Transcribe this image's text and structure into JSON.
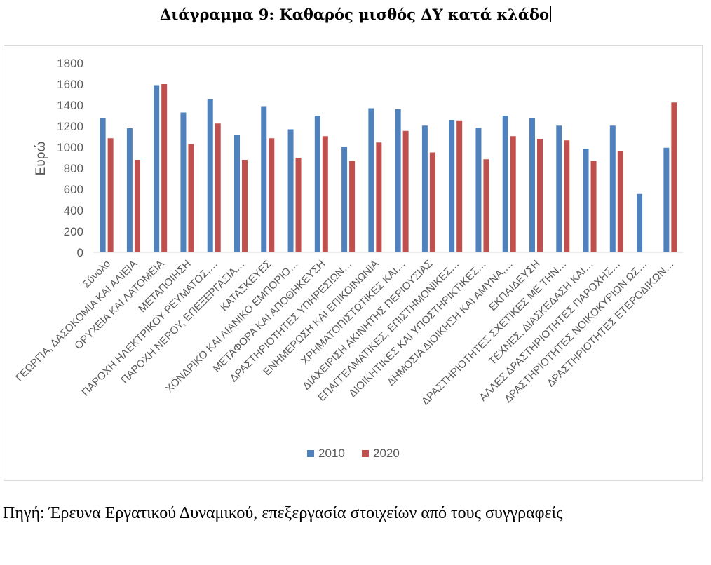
{
  "title": "Διάγραμμα 9: Καθαρός μισθός ΔΥ κατά κλάδο",
  "source": "Πηγή: Έρευνα Εργατικού Δυναμικού, επεξεργασία στοιχείων από τους συγγραφείς",
  "chart_data": {
    "type": "bar",
    "title": "",
    "xlabel": "",
    "ylabel": "Ευρώ",
    "ylim": [
      0,
      1800
    ],
    "yticks": [
      0,
      200,
      400,
      600,
      800,
      1000,
      1200,
      1400,
      1600,
      1800
    ],
    "grid": false,
    "legend_position": "bottom",
    "categories": [
      "Σύνολο",
      "ΓΕΩΡΓΙΑ, ΔΑΣΟΚΟΜΙΑ ΚΑΙ ΑΛΙΕΙΑ",
      "ΟΡΥΧΕΙΑ ΚΑΙ ΛΑΤΟΜΕΙΑ",
      "ΜΕΤΑΠΟΙΗΣΗ",
      "ΠΑΡΟΧΗ ΗΛΕΚΤΡΙΚΟΥ ΡΕΥΜΑΤΟΣ,…",
      "ΠΑΡΟΧΗ ΝΕΡΟΥ, ΕΠΕΞΕΡΓΑΣΙΑ…",
      "ΚΑΤΑΣΚΕΥΕΣ",
      "ΧΟΝΔΡΙΚΟ ΚΑΙ ΛΙΑΝΙΚΟ ΕΜΠΟΡΙΟ…",
      "ΜΕΤΑΦΟΡΑ ΚΑΙ ΑΠΟΘΗΚΕΥΣΗ",
      "ΔΡΑΣΤΗΡΙΟΤΗΤΕΣ ΥΠΗΡΕΣΙΩΝ…",
      "ΕΝΗΜΕΡΩΣΗ ΚΑΙ ΕΠΙΚΟΙΝΩΝΙΑ",
      "ΧΡΗΜΑΤΟΠΙΣΤΩΤΙΚΕΣ ΚΑΙ…",
      "ΔΙΑΧΕΙΡΙΣΗ ΑΚΙΝΗΤΗΣ ΠΕΡΙΟΥΣΙΑΣ",
      "ΕΠΑΓΓΕΛΜΑΤΙΚΕΣ, ΕΠΙΣΤΗΜΟΝΙΚΕΣ…",
      "ΔΙΟΙΚΗΤΙΚΕΣ ΚΑΙ ΥΠΟΣΤΗΡΙΚΤΙΚΕΣ…",
      "ΔΗΜΟΣΙΑ ΔΙΟΙΚΗΣΗ ΚΑΙ ΑΜΥΝΑ,…",
      "ΕΚΠΑΙΔΕΥΣΗ",
      "ΔΡΑΣΤΗΡΙΟΤΗΤΕΣ ΣΧΕΤΙΚΕΣ ΜΕ ΤΗΝ…",
      "ΤΕΧΝΕΣ, ΔΙΑΣΚΕΔΑΣΗ ΚΑΙ…",
      "ΑΛΛΕΣ ΔΡΑΣΤΗΡΙΟΤΗΤΕΣ ΠΑΡΟΧΗΣ…",
      "ΔΡΑΣΤΗΡΙΟΤΗΤΕΣ ΝΟΙΚΟΚΥΡΙΩΝ ΩΣ…",
      "ΔΡΑΣΤΗΡΙΟΤΗΤΕΣ ΕΤΕΡΟΔΙΚΩΝ…"
    ],
    "series": [
      {
        "name": "2010",
        "color": "#4f81bd",
        "values": [
          1280,
          1180,
          1590,
          1330,
          1460,
          1120,
          1390,
          1170,
          1300,
          1005,
          1370,
          1360,
          1205,
          1260,
          1185,
          1300,
          1280,
          1205,
          985,
          1205,
          555,
          995
        ]
      },
      {
        "name": "2020",
        "color": "#c0504d",
        "values": [
          1085,
          880,
          1600,
          1030,
          1225,
          880,
          1085,
          900,
          1105,
          870,
          1045,
          1155,
          950,
          1255,
          885,
          1105,
          1080,
          1065,
          870,
          960,
          null,
          1425
        ]
      }
    ]
  }
}
